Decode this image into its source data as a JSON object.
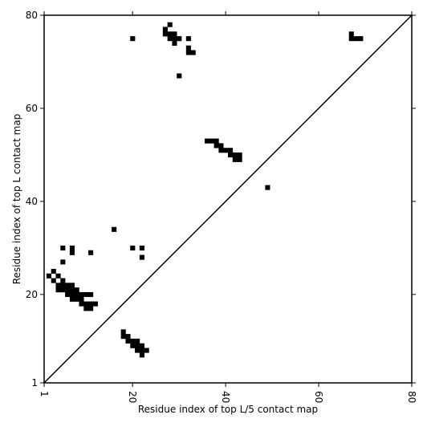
{
  "chart_data": {
    "type": "heatmap",
    "title": "",
    "xlabel": "Residue index of top L/5 contact map",
    "ylabel": "Residue index of top L contact map",
    "xlim": [
      1,
      80
    ],
    "ylim": [
      1,
      80
    ],
    "x_ticks": [
      1,
      20,
      40,
      60,
      80
    ],
    "y_ticks": [
      1,
      20,
      40,
      60,
      80
    ],
    "x_tick_labels": [
      "1",
      "20",
      "40",
      "60",
      "80"
    ],
    "y_tick_labels": [
      "1",
      "20",
      "40",
      "60",
      "80"
    ],
    "diagonal_line": true,
    "grid": false,
    "cell_color": "#000000",
    "series": [
      {
        "x": [
          20,
          27,
          27,
          28,
          28,
          28,
          29,
          29,
          29,
          30,
          32,
          32,
          32,
          33,
          30,
          67,
          67,
          68,
          69,
          36,
          37,
          38,
          38,
          39,
          39,
          40,
          41,
          41,
          42,
          42,
          43,
          43,
          49,
          16,
          5,
          5,
          7,
          7,
          11,
          20,
          22,
          22,
          2,
          3,
          3,
          4,
          4,
          4,
          5,
          5,
          5,
          6,
          6,
          6,
          7,
          7,
          7,
          7,
          8,
          8,
          8,
          9,
          9,
          9,
          10,
          10,
          10,
          11,
          11,
          11,
          12,
          18,
          18,
          19,
          19,
          20,
          20,
          21,
          21,
          21,
          22,
          22,
          22,
          23
        ],
        "y": [
          75,
          77,
          76,
          78,
          76,
          75,
          76,
          75,
          74,
          75,
          75,
          73,
          72,
          72,
          67,
          76,
          75,
          75,
          75,
          53,
          53,
          53,
          52,
          52,
          51,
          51,
          51,
          50,
          50,
          49,
          50,
          49,
          43,
          34,
          30,
          27,
          30,
          29,
          29,
          30,
          30,
          28,
          24,
          25,
          23,
          24,
          22,
          21,
          23,
          22,
          21,
          22,
          21,
          20,
          21,
          20,
          19,
          22,
          20,
          19,
          21,
          20,
          19,
          18,
          20,
          18,
          17,
          20,
          18,
          17,
          18,
          12,
          11,
          11,
          10,
          10,
          9,
          10,
          9,
          8,
          9,
          8,
          7,
          8
        ]
      }
    ]
  }
}
